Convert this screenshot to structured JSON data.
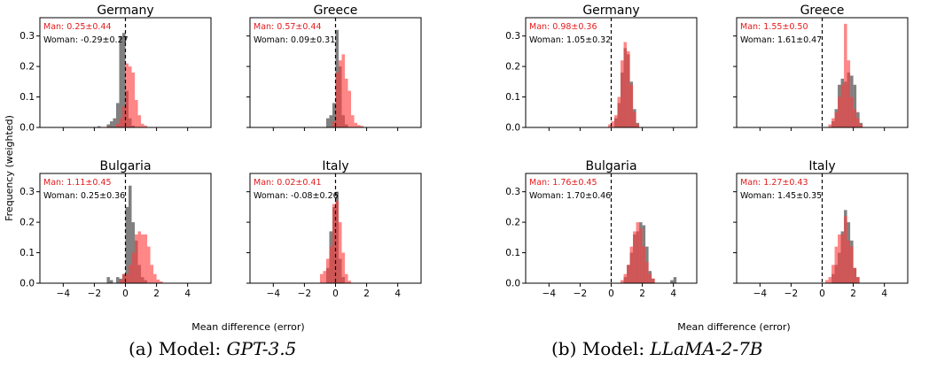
{
  "captions": [
    {
      "prefix": "(a) Model: ",
      "model": "GPT-3.5"
    },
    {
      "prefix": "(b) Model: ",
      "model": "LLaMA-2-7B"
    }
  ],
  "colors": {
    "man": "#ff3b3b",
    "woman": "#555555",
    "man_text": "#e41a1c",
    "woman_text": "#000000"
  },
  "chart_data": [
    {
      "type": "bar",
      "model": "GPT-3.5",
      "ylabel": "Frequency (weighted)",
      "xlabel": "Mean difference (error)",
      "xlim": [
        -5.5,
        5.5
      ],
      "ylim": [
        0,
        0.36
      ],
      "xticks": [
        -4,
        -2,
        0,
        2,
        4
      ],
      "yticks": [
        0.0,
        0.1,
        0.2,
        0.3
      ],
      "vline_x": 0,
      "bin_width": 0.2,
      "panels": [
        {
          "title": "Germany",
          "man_label": "Man: 0.25±0.44",
          "woman_label": "Woman: -0.29±0.27",
          "series": [
            {
              "name": "Man",
              "bins": [
                [
                  -1.2,
                  0.004
                ],
                [
                  -0.6,
                  0.012
                ],
                [
                  -0.4,
                  0.03
                ],
                [
                  -0.2,
                  0.07
                ],
                [
                  0.0,
                  0.21
                ],
                [
                  0.2,
                  0.2
                ],
                [
                  0.4,
                  0.18
                ],
                [
                  0.6,
                  0.09
                ],
                [
                  0.8,
                  0.04
                ],
                [
                  1.0,
                  0.012
                ],
                [
                  1.2,
                  0.006
                ]
              ]
            },
            {
              "name": "Woman",
              "bins": [
                [
                  -1.8,
                  0.004
                ],
                [
                  -1.2,
                  0.01
                ],
                [
                  -1.0,
                  0.02
                ],
                [
                  -0.8,
                  0.03
                ],
                [
                  -0.6,
                  0.08
                ],
                [
                  -0.4,
                  0.3
                ],
                [
                  -0.2,
                  0.31
                ],
                [
                  0.0,
                  0.12
                ],
                [
                  0.2,
                  0.03
                ],
                [
                  0.4,
                  0.006
                ]
              ]
            }
          ]
        },
        {
          "title": "Greece",
          "man_label": "Man: 0.57±0.44",
          "woman_label": "Woman: 0.09±0.31",
          "series": [
            {
              "name": "Man",
              "bins": [
                [
                  -0.2,
                  0.02
                ],
                [
                  0.0,
                  0.18
                ],
                [
                  0.2,
                  0.22
                ],
                [
                  0.4,
                  0.24
                ],
                [
                  0.6,
                  0.16
                ],
                [
                  0.8,
                  0.12
                ],
                [
                  1.0,
                  0.04
                ],
                [
                  1.2,
                  0.015
                ],
                [
                  1.4,
                  0.008
                ],
                [
                  1.6,
                  0.005
                ]
              ]
            },
            {
              "name": "Woman",
              "bins": [
                [
                  -0.6,
                  0.03
                ],
                [
                  -0.4,
                  0.04
                ],
                [
                  -0.2,
                  0.08
                ],
                [
                  0.0,
                  0.32
                ],
                [
                  0.2,
                  0.2
                ],
                [
                  0.4,
                  0.04
                ],
                [
                  0.6,
                  0.01
                ]
              ]
            }
          ]
        },
        {
          "title": "Bulgaria",
          "man_label": "Man: 1.11±0.45",
          "woman_label": "Woman: 0.25±0.36",
          "series": [
            {
              "name": "Man",
              "bins": [
                [
                  -0.4,
                  0.01
                ],
                [
                  -0.2,
                  0.03
                ],
                [
                  0.0,
                  0.03
                ],
                [
                  0.2,
                  0.06
                ],
                [
                  0.4,
                  0.1
                ],
                [
                  0.6,
                  0.16
                ],
                [
                  0.8,
                  0.17
                ],
                [
                  1.0,
                  0.16
                ],
                [
                  1.2,
                  0.16
                ],
                [
                  1.4,
                  0.12
                ],
                [
                  1.6,
                  0.06
                ],
                [
                  1.8,
                  0.03
                ],
                [
                  2.0,
                  0.012
                ],
                [
                  2.2,
                  0.006
                ]
              ]
            },
            {
              "name": "Woman",
              "bins": [
                [
                  -1.2,
                  0.02
                ],
                [
                  -1.0,
                  0.01
                ],
                [
                  -0.6,
                  0.02
                ],
                [
                  -0.4,
                  0.015
                ],
                [
                  -0.2,
                  0.03
                ],
                [
                  0.0,
                  0.25
                ],
                [
                  0.2,
                  0.32
                ],
                [
                  0.4,
                  0.2
                ],
                [
                  0.6,
                  0.14
                ],
                [
                  0.8,
                  0.06
                ],
                [
                  1.0,
                  0.02
                ],
                [
                  1.2,
                  0.01
                ]
              ]
            }
          ]
        },
        {
          "title": "Italy",
          "man_label": "Man: 0.02±0.41",
          "woman_label": "Woman: -0.08±0.26",
          "series": [
            {
              "name": "Man",
              "bins": [
                [
                  -1.0,
                  0.03
                ],
                [
                  -0.8,
                  0.04
                ],
                [
                  -0.6,
                  0.08
                ],
                [
                  -0.4,
                  0.12
                ],
                [
                  -0.2,
                  0.26
                ],
                [
                  0.0,
                  0.27
                ],
                [
                  0.2,
                  0.2
                ],
                [
                  0.4,
                  0.1
                ],
                [
                  0.6,
                  0.03
                ],
                [
                  0.8,
                  0.008
                ]
              ]
            },
            {
              "name": "Woman",
              "bins": [
                [
                  -0.6,
                  0.05
                ],
                [
                  -0.4,
                  0.17
                ],
                [
                  -0.2,
                  0.25
                ],
                [
                  0.0,
                  0.3
                ],
                [
                  0.2,
                  0.08
                ],
                [
                  0.4,
                  0.02
                ]
              ]
            }
          ]
        }
      ]
    },
    {
      "type": "bar",
      "model": "LLaMA-2-7B",
      "ylabel": "",
      "xlabel": "Mean difference (error)",
      "xlim": [
        -5.5,
        5.5
      ],
      "ylim": [
        0,
        0.36
      ],
      "xticks": [
        -4,
        -2,
        0,
        2,
        4
      ],
      "yticks": [
        0.0,
        0.1,
        0.2,
        0.3
      ],
      "vline_x": 0,
      "bin_width": 0.2,
      "panels": [
        {
          "title": "Germany",
          "man_label": "Man: 0.98±0.36",
          "woman_label": "Woman: 1.05±0.32",
          "series": [
            {
              "name": "Man",
              "bins": [
                [
                  -0.2,
                  0.01
                ],
                [
                  0.0,
                  0.02
                ],
                [
                  0.2,
                  0.04
                ],
                [
                  0.4,
                  0.1
                ],
                [
                  0.6,
                  0.22
                ],
                [
                  0.8,
                  0.28
                ],
                [
                  1.0,
                  0.25
                ],
                [
                  1.2,
                  0.14
                ],
                [
                  1.4,
                  0.05
                ],
                [
                  1.6,
                  0.01
                ]
              ]
            },
            {
              "name": "Woman",
              "bins": [
                [
                  0.2,
                  0.03
                ],
                [
                  0.4,
                  0.08
                ],
                [
                  0.6,
                  0.18
                ],
                [
                  0.8,
                  0.26
                ],
                [
                  1.0,
                  0.24
                ],
                [
                  1.2,
                  0.15
                ],
                [
                  1.4,
                  0.06
                ],
                [
                  1.6,
                  0.015
                ]
              ]
            }
          ]
        },
        {
          "title": "Greece",
          "man_label": "Man: 1.55±0.50",
          "woman_label": "Woman: 1.61±0.47",
          "series": [
            {
              "name": "Man",
              "bins": [
                [
                  0.4,
                  0.01
                ],
                [
                  0.6,
                  0.03
                ],
                [
                  0.8,
                  0.05
                ],
                [
                  1.0,
                  0.1
                ],
                [
                  1.2,
                  0.14
                ],
                [
                  1.4,
                  0.34
                ],
                [
                  1.6,
                  0.22
                ],
                [
                  1.8,
                  0.1
                ],
                [
                  2.0,
                  0.06
                ],
                [
                  2.2,
                  0.03
                ],
                [
                  2.4,
                  0.01
                ]
              ]
            },
            {
              "name": "Woman",
              "bins": [
                [
                  0.6,
                  0.02
                ],
                [
                  0.8,
                  0.06
                ],
                [
                  1.0,
                  0.14
                ],
                [
                  1.2,
                  0.16
                ],
                [
                  1.4,
                  0.15
                ],
                [
                  1.6,
                  0.18
                ],
                [
                  1.8,
                  0.17
                ],
                [
                  2.0,
                  0.14
                ],
                [
                  2.2,
                  0.05
                ],
                [
                  2.4,
                  0.015
                ]
              ]
            }
          ]
        },
        {
          "title": "Bulgaria",
          "man_label": "Man: 1.76±0.45",
          "woman_label": "Woman: 1.70±0.46",
          "series": [
            {
              "name": "Man",
              "bins": [
                [
                  0.6,
                  0.01
                ],
                [
                  0.8,
                  0.03
                ],
                [
                  1.0,
                  0.06
                ],
                [
                  1.2,
                  0.12
                ],
                [
                  1.4,
                  0.17
                ],
                [
                  1.6,
                  0.2
                ],
                [
                  1.8,
                  0.18
                ],
                [
                  2.0,
                  0.12
                ],
                [
                  2.2,
                  0.07
                ],
                [
                  2.4,
                  0.03
                ],
                [
                  2.6,
                  0.015
                ]
              ]
            },
            {
              "name": "Woman",
              "bins": [
                [
                  0.8,
                  0.02
                ],
                [
                  1.0,
                  0.06
                ],
                [
                  1.2,
                  0.1
                ],
                [
                  1.4,
                  0.16
                ],
                [
                  1.6,
                  0.17
                ],
                [
                  1.8,
                  0.2
                ],
                [
                  2.0,
                  0.19
                ],
                [
                  2.2,
                  0.12
                ],
                [
                  2.4,
                  0.04
                ],
                [
                  2.6,
                  0.015
                ],
                [
                  3.8,
                  0.01
                ],
                [
                  4.0,
                  0.02
                ]
              ]
            }
          ]
        },
        {
          "title": "Italy",
          "man_label": "Man: 1.27±0.43",
          "woman_label": "Woman: 1.45±0.35",
          "series": [
            {
              "name": "Man",
              "bins": [
                [
                  0.2,
                  0.01
                ],
                [
                  0.4,
                  0.02
                ],
                [
                  0.6,
                  0.06
                ],
                [
                  0.8,
                  0.12
                ],
                [
                  1.0,
                  0.16
                ],
                [
                  1.2,
                  0.16
                ],
                [
                  1.4,
                  0.22
                ],
                [
                  1.6,
                  0.14
                ],
                [
                  1.8,
                  0.12
                ],
                [
                  2.0,
                  0.05
                ],
                [
                  2.2,
                  0.02
                ]
              ]
            },
            {
              "name": "Woman",
              "bins": [
                [
                  0.6,
                  0.03
                ],
                [
                  0.8,
                  0.06
                ],
                [
                  1.0,
                  0.1
                ],
                [
                  1.2,
                  0.17
                ],
                [
                  1.4,
                  0.24
                ],
                [
                  1.6,
                  0.2
                ],
                [
                  1.8,
                  0.14
                ],
                [
                  2.0,
                  0.05
                ],
                [
                  2.2,
                  0.02
                ]
              ]
            }
          ]
        }
      ]
    }
  ]
}
